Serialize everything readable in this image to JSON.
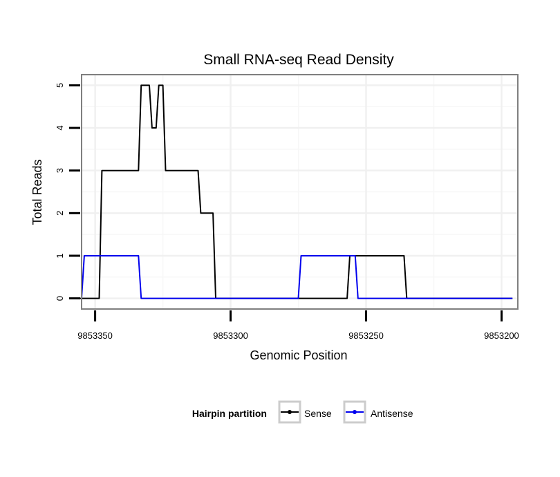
{
  "chart_data": {
    "type": "line",
    "title": "Small RNA-seq Read Density",
    "xlabel": "Genomic Position",
    "ylabel": "Total Reads",
    "xlim": [
      9853355,
      9853194
    ],
    "x_reversed": true,
    "ylim": [
      -0.25,
      5.25
    ],
    "xticks": [
      9853350,
      9853300,
      9853250,
      9853200
    ],
    "xtick_labels": [
      "9853350",
      "9853300",
      "9853250",
      "9853200"
    ],
    "yticks": [
      0,
      1,
      2,
      3,
      4,
      5
    ],
    "ytick_labels": [
      "0",
      "1",
      "2",
      "3",
      "4",
      "5"
    ],
    "grid": true,
    "legend": {
      "title": "Hairpin partition",
      "position": "bottom",
      "entries": [
        "Sense",
        "Antisense"
      ]
    },
    "series": [
      {
        "name": "Sense",
        "color": "#000000",
        "x": [
          9853356,
          9853348.5,
          9853347.5,
          9853334,
          9853333,
          9853330,
          9853329,
          9853327.5,
          9853326.5,
          9853325,
          9853324,
          9853323,
          9853322,
          9853312,
          9853311,
          9853306.5,
          9853305.5,
          9853294,
          9853293,
          9853257,
          9853256,
          9853236,
          9853235,
          9853196
        ],
        "y": [
          0,
          0,
          3,
          3,
          5,
          5,
          4,
          4,
          5,
          5,
          3,
          3,
          3,
          3,
          2,
          2,
          0,
          0,
          0,
          0,
          1,
          1,
          0,
          0
        ]
      },
      {
        "name": "Antisense",
        "color": "#0000ee",
        "x": [
          9853355,
          9853354,
          9853334,
          9853333,
          9853294,
          9853293,
          9853275,
          9853274,
          9853254,
          9853253,
          9853196
        ],
        "y": [
          0,
          1,
          1,
          0,
          0,
          0,
          0,
          1,
          1,
          0,
          0
        ]
      }
    ]
  }
}
